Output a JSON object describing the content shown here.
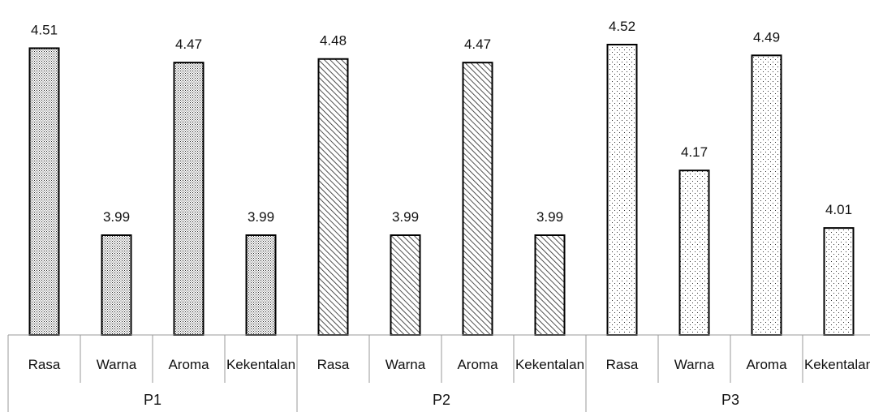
{
  "chart_data": {
    "type": "bar",
    "groups": [
      {
        "name": "P1",
        "pattern": "dots-dense",
        "categories": [
          "Rasa",
          "Warna",
          "Aroma",
          "Kekentalan"
        ],
        "values": [
          4.51,
          3.99,
          4.47,
          3.99
        ]
      },
      {
        "name": "P2",
        "pattern": "diagonal-hatch",
        "categories": [
          "Rasa",
          "Warna",
          "Aroma",
          "Kekentalan"
        ],
        "values": [
          4.48,
          3.99,
          4.47,
          3.99
        ]
      },
      {
        "name": "P3",
        "pattern": "dots-sparse",
        "categories": [
          "Rasa",
          "Warna",
          "Aroma",
          "Kekentalan"
        ],
        "values": [
          4.52,
          4.17,
          4.49,
          4.01
        ]
      }
    ],
    "value_labels": [
      [
        "4.51",
        "3.99",
        "4.47",
        "3.99"
      ],
      [
        "4.48",
        "3.99",
        "4.47",
        "3.99"
      ],
      [
        "4.52",
        "4.17",
        "4.49",
        "4.01"
      ]
    ],
    "ylim": [
      3.0,
      4.6
    ],
    "grid": false,
    "legend": "none",
    "colors": {
      "bar_fill": "#ffffff",
      "pattern": "#222222",
      "stroke": "#000000",
      "axis": "#999999"
    }
  }
}
